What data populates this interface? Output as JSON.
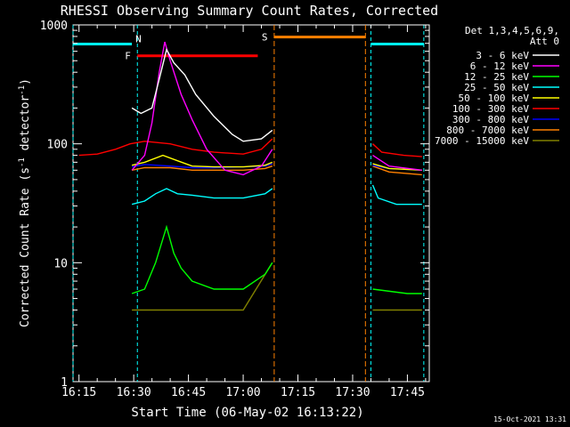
{
  "chart_data": {
    "type": "line",
    "title": "RHESSI Observing Summary Count Rates, Corrected",
    "xlabel": "Start Time (06-May-02 16:13:22)",
    "ylabel_main": "Corrected Count Rate (s",
    "ylabel_sup1": "-1",
    "ylabel_mid": " detector",
    "ylabel_sup2": "-1",
    "ylabel_end": ")",
    "y_scale": "log",
    "ylim": [
      1,
      1000
    ],
    "xlim": [
      "16:13:22",
      "17:51:00"
    ],
    "x_ticks": [
      "16:15",
      "16:30",
      "16:45",
      "17:00",
      "17:15",
      "17:30",
      "17:45"
    ],
    "y_ticks": [
      {
        "label": "1",
        "value": 1
      },
      {
        "label": "10",
        "value": 10
      },
      {
        "label": "100",
        "value": 100
      },
      {
        "label": "1000",
        "value": 1000
      }
    ],
    "timestamp": "15-Oct-2021 13:31",
    "legend": {
      "placement": "right",
      "header_line1": "Det 1,3,4,5,6,9,",
      "header_line2": "Att 0",
      "entries": [
        {
          "label": "3 - 6 keV",
          "color": "#ffffff"
        },
        {
          "label": "6 - 12 keV",
          "color": "#ff00ff"
        },
        {
          "label": "12 - 25 keV",
          "color": "#00ff00"
        },
        {
          "label": "25 - 50 keV",
          "color": "#00ffff"
        },
        {
          "label": "50 - 100 keV",
          "color": "#ffff00"
        },
        {
          "label": "100 - 300 keV",
          "color": "#ff0000"
        },
        {
          "label": "300 - 800 keV",
          "color": "#0000ff"
        },
        {
          "label": "800 - 7000 keV",
          "color": "#ff8000"
        },
        {
          "label": "7000 - 15000 keV",
          "color": "#808000"
        }
      ]
    },
    "annotations": {
      "night_label": "N",
      "saa_label": "S",
      "flare_label": "F",
      "night_color": "#00ffff",
      "saa_color": "#ff8000",
      "flare_color": "#ff0000",
      "night_bars": [
        [
          "16:13:22",
          "16:29:30"
        ],
        [
          "17:35:00",
          "17:49:30"
        ]
      ],
      "saa_bar": [
        "17:08:30",
        "17:33:30"
      ],
      "flare_bar": [
        "16:31:00",
        "17:04:00"
      ],
      "flare_bar_level": 550,
      "night_bar_level": 690,
      "saa_bar_level": 790,
      "vlines_night": [
        "16:13:22",
        "16:31:00",
        "17:35:00",
        "17:49:30"
      ],
      "vlines_saa": [
        "17:08:30",
        "17:33:30"
      ],
      "vlines_flare": [
        "16:31:00"
      ]
    },
    "series": [
      {
        "name": "7000 - 15000 keV",
        "color": "#808000",
        "points": [
          [
            "16:29:30",
            4
          ],
          [
            "16:31:00",
            4
          ],
          [
            "16:45:00",
            4
          ],
          [
            "17:00:00",
            4
          ],
          [
            "17:08:00",
            10
          ],
          [
            "17:08:30",
            null
          ],
          [
            "17:35:30",
            4
          ],
          [
            "17:45:00",
            4
          ],
          [
            "17:49:00",
            4
          ]
        ]
      },
      {
        "name": "12 - 25 keV",
        "color": "#00ff00",
        "points": [
          [
            "16:29:30",
            5.5
          ],
          [
            "16:33:00",
            6
          ],
          [
            "16:36:00",
            10
          ],
          [
            "16:39:00",
            20
          ],
          [
            "16:41:00",
            12
          ],
          [
            "16:43:00",
            9
          ],
          [
            "16:46:00",
            7
          ],
          [
            "16:52:00",
            6
          ],
          [
            "17:00:00",
            6
          ],
          [
            "17:06:00",
            8
          ],
          [
            "17:08:00",
            10
          ],
          [
            "17:08:30",
            null
          ],
          [
            "17:35:30",
            6
          ],
          [
            "17:45:00",
            5.5
          ],
          [
            "17:49:00",
            5.5
          ]
        ]
      },
      {
        "name": "25 - 50 keV",
        "color": "#00ffff",
        "points": [
          [
            "16:29:30",
            31
          ],
          [
            "16:33:00",
            33
          ],
          [
            "16:36:00",
            38
          ],
          [
            "16:39:00",
            42
          ],
          [
            "16:42:00",
            38
          ],
          [
            "16:46:00",
            37
          ],
          [
            "16:52:00",
            35
          ],
          [
            "17:00:00",
            35
          ],
          [
            "17:06:00",
            38
          ],
          [
            "17:08:00",
            42
          ],
          [
            "17:08:30",
            null
          ],
          [
            "17:35:30",
            45
          ],
          [
            "17:37:00",
            35
          ],
          [
            "17:42:00",
            31
          ],
          [
            "17:49:00",
            31
          ]
        ]
      },
      {
        "name": "800 - 7000 keV",
        "color": "#ff8000",
        "points": [
          [
            "16:29:30",
            60
          ],
          [
            "16:33:00",
            63
          ],
          [
            "16:40:00",
            63
          ],
          [
            "16:46:00",
            60
          ],
          [
            "16:52:00",
            60
          ],
          [
            "17:00:00",
            60
          ],
          [
            "17:06:00",
            62
          ],
          [
            "17:08:00",
            65
          ],
          [
            "17:08:30",
            null
          ],
          [
            "17:35:30",
            65
          ],
          [
            "17:40:00",
            58
          ],
          [
            "17:49:00",
            55
          ]
        ]
      },
      {
        "name": "300 - 800 keV",
        "color": "#0000ff",
        "points": [
          [
            "16:29:30",
            64
          ],
          [
            "16:33:00",
            67
          ],
          [
            "16:40:00",
            65
          ],
          [
            "16:46:00",
            63
          ],
          [
            "16:52:00",
            63
          ],
          [
            "17:00:00",
            64
          ],
          [
            "17:06:00",
            65
          ],
          [
            "17:08:00",
            68
          ],
          [
            "17:08:30",
            null
          ],
          [
            "17:35:30",
            66
          ],
          [
            "17:40:00",
            62
          ],
          [
            "17:49:00",
            60
          ]
        ]
      },
      {
        "name": "50 - 100 keV",
        "color": "#ffff00",
        "points": [
          [
            "16:29:30",
            66
          ],
          [
            "16:33:00",
            70
          ],
          [
            "16:38:00",
            80
          ],
          [
            "16:42:00",
            72
          ],
          [
            "16:46:00",
            65
          ],
          [
            "16:52:00",
            64
          ],
          [
            "17:00:00",
            64
          ],
          [
            "17:06:00",
            66
          ],
          [
            "17:08:00",
            70
          ],
          [
            "17:08:30",
            null
          ],
          [
            "17:35:30",
            68
          ],
          [
            "17:40:00",
            62
          ],
          [
            "17:49:00",
            60
          ]
        ]
      },
      {
        "name": "100 - 300 keV",
        "color": "#ff0000",
        "points": [
          [
            "16:15:00",
            80
          ],
          [
            "16:20:00",
            82
          ],
          [
            "16:25:00",
            90
          ],
          [
            "16:29:00",
            100
          ],
          [
            "16:33:00",
            105
          ],
          [
            "16:40:00",
            100
          ],
          [
            "16:46:00",
            90
          ],
          [
            "16:52:00",
            85
          ],
          [
            "17:00:00",
            82
          ],
          [
            "17:05:00",
            90
          ],
          [
            "17:08:00",
            110
          ],
          [
            "17:08:30",
            null
          ],
          [
            "17:35:30",
            100
          ],
          [
            "17:38:00",
            85
          ],
          [
            "17:44:00",
            80
          ],
          [
            "17:49:00",
            78
          ]
        ]
      },
      {
        "name": "6 - 12 keV",
        "color": "#ff00ff",
        "points": [
          [
            "16:29:30",
            60
          ],
          [
            "16:33:00",
            80
          ],
          [
            "16:35:00",
            150
          ],
          [
            "16:37:00",
            400
          ],
          [
            "16:38:30",
            720
          ],
          [
            "16:40:00",
            500
          ],
          [
            "16:43:00",
            260
          ],
          [
            "16:46:00",
            160
          ],
          [
            "16:50:00",
            90
          ],
          [
            "16:55:00",
            60
          ],
          [
            "17:00:00",
            55
          ],
          [
            "17:05:00",
            65
          ],
          [
            "17:08:00",
            90
          ],
          [
            "17:08:30",
            null
          ],
          [
            "17:35:30",
            80
          ],
          [
            "17:40:00",
            65
          ],
          [
            "17:49:00",
            60
          ]
        ]
      },
      {
        "name": "3 - 6 keV",
        "color": "#ffffff",
        "points": [
          [
            "16:29:30",
            200
          ],
          [
            "16:32:00",
            180
          ],
          [
            "16:35:00",
            200
          ],
          [
            "16:37:00",
            350
          ],
          [
            "16:39:00",
            620
          ],
          [
            "16:41:00",
            480
          ],
          [
            "16:44:00",
            380
          ],
          [
            "16:47:00",
            260
          ],
          [
            "16:52:00",
            170
          ],
          [
            "16:57:00",
            120
          ],
          [
            "17:00:00",
            105
          ],
          [
            "17:05:00",
            110
          ],
          [
            "17:08:00",
            130
          ]
        ]
      }
    ]
  }
}
